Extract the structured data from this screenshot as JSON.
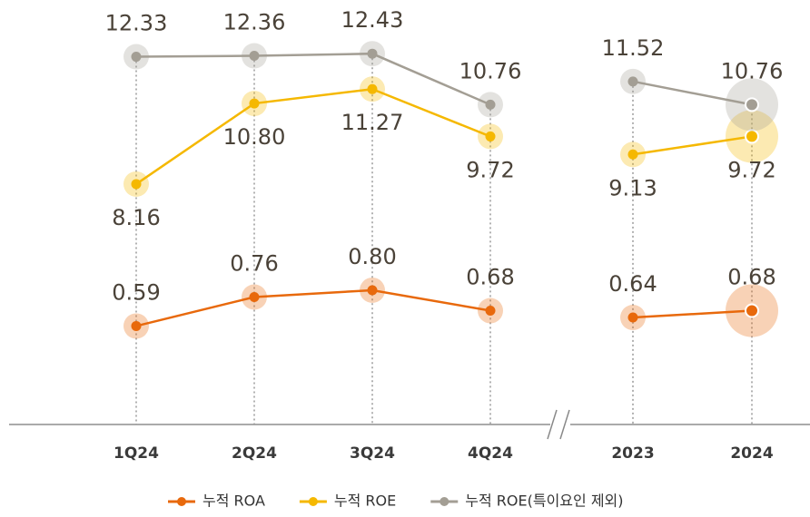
{
  "chart_data": {
    "type": "line",
    "categories": [
      "1Q24",
      "2Q24",
      "3Q24",
      "4Q24",
      "2023",
      "2024"
    ],
    "ylim": [
      1,
      13
    ],
    "y2lim": [
      0.14,
      2.29
    ],
    "series": [
      {
        "name": "누적 ROA",
        "color": "#e8690c",
        "axis": "y2",
        "values": [
          0.59,
          0.76,
          0.8,
          0.68,
          0.64,
          0.68
        ]
      },
      {
        "name": "누적 ROE",
        "color": "#f5b800",
        "values": [
          8.16,
          10.8,
          11.27,
          9.72,
          9.13,
          9.72
        ]
      },
      {
        "name": "누적 ROE(특이요인 제외)",
        "color": "#a39e94",
        "values": [
          12.33,
          12.36,
          12.43,
          10.76,
          11.52,
          10.76
        ]
      }
    ]
  }
}
